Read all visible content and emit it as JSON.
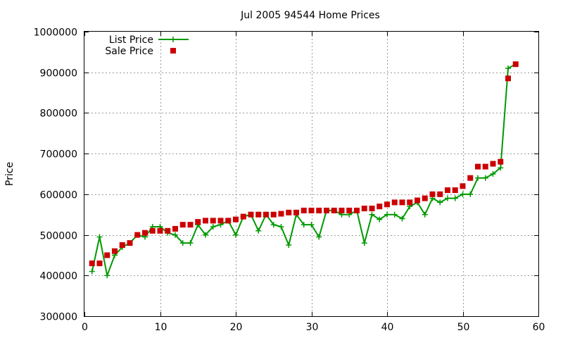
{
  "chart_data": {
    "type": "line",
    "title": "Jul 2005 94544 Home Prices",
    "xlabel": "",
    "ylabel": "Price",
    "xlim": [
      0,
      60
    ],
    "ylim": [
      300000,
      1000000
    ],
    "x_ticks": [
      0,
      10,
      20,
      30,
      40,
      50,
      60
    ],
    "y_ticks": [
      300000,
      400000,
      500000,
      600000,
      700000,
      800000,
      900000,
      1000000
    ],
    "grid": true,
    "legend_position": "top-left",
    "series": [
      {
        "name": "List Price",
        "style": "line-plus",
        "color": "#009900",
        "x": [
          1,
          2,
          3,
          4,
          5,
          6,
          7,
          8,
          9,
          10,
          11,
          12,
          13,
          14,
          15,
          16,
          17,
          18,
          19,
          20,
          21,
          22,
          23,
          24,
          25,
          26,
          27,
          28,
          29,
          30,
          31,
          32,
          33,
          34,
          35,
          36,
          37,
          38,
          39,
          40,
          41,
          42,
          43,
          44,
          45,
          46,
          47,
          48,
          49,
          50,
          51,
          52,
          53,
          54,
          55,
          56,
          57
        ],
        "values": [
          410000,
          495000,
          400000,
          450000,
          470000,
          480000,
          500000,
          495000,
          520000,
          520000,
          505000,
          500000,
          480000,
          480000,
          525000,
          500000,
          520000,
          525000,
          535000,
          500000,
          545000,
          550000,
          510000,
          550000,
          525000,
          520000,
          475000,
          550000,
          525000,
          525000,
          495000,
          560000,
          560000,
          550000,
          550000,
          560000,
          480000,
          550000,
          538000,
          550000,
          550000,
          540000,
          570000,
          580000,
          550000,
          590000,
          580000,
          590000,
          590000,
          600000,
          600000,
          640000,
          640000,
          650000,
          665000,
          910000,
          920000
        ]
      },
      {
        "name": "Sale Price",
        "style": "points-square",
        "color": "#cc0000",
        "x": [
          1,
          2,
          3,
          4,
          5,
          6,
          7,
          8,
          9,
          10,
          11,
          12,
          13,
          14,
          15,
          16,
          17,
          18,
          19,
          20,
          21,
          22,
          23,
          24,
          25,
          26,
          27,
          28,
          29,
          30,
          31,
          32,
          33,
          34,
          35,
          36,
          37,
          38,
          39,
          40,
          41,
          42,
          43,
          44,
          45,
          46,
          47,
          48,
          49,
          50,
          51,
          52,
          53,
          54,
          55,
          56,
          57
        ],
        "values": [
          430000,
          430000,
          450000,
          460000,
          475000,
          480000,
          500000,
          505000,
          510000,
          510000,
          510000,
          515000,
          525000,
          525000,
          532000,
          535000,
          535000,
          535000,
          535000,
          538000,
          545000,
          550000,
          550000,
          550000,
          550000,
          552000,
          555000,
          555000,
          560000,
          560000,
          560000,
          560000,
          560000,
          560000,
          560000,
          560000,
          565000,
          565000,
          570000,
          575000,
          580000,
          580000,
          580000,
          585000,
          590000,
          600000,
          600000,
          610000,
          610000,
          620000,
          640000,
          668000,
          668000,
          675000,
          680000,
          885000,
          920000
        ]
      }
    ]
  }
}
